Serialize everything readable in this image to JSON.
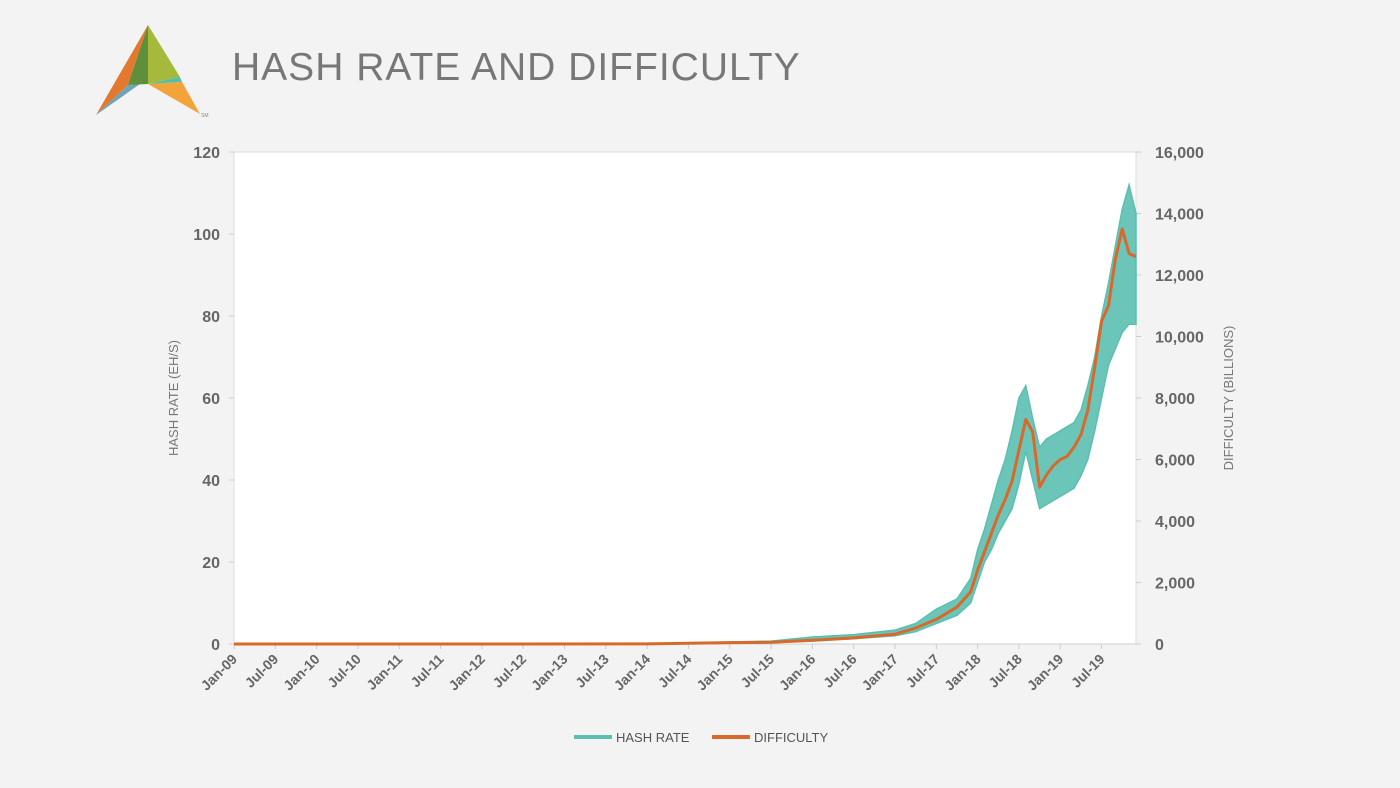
{
  "header": {
    "title": "HASH RATE AND DIFFICULTY",
    "logo_mark": "SM"
  },
  "colors": {
    "hash_rate": "#5bbfb0",
    "difficulty": "#d9692a",
    "plot_background": "#ffffff",
    "page_background": "#f3f3f3"
  },
  "chart_data": {
    "type": "line",
    "title": "HASH RATE AND DIFFICULTY",
    "legend_position": "bottom",
    "grid": false,
    "x_categories": [
      "Jan-09",
      "Jul-09",
      "Jan-10",
      "Jul-10",
      "Jan-11",
      "Jul-11",
      "Jan-12",
      "Jul-12",
      "Jan-13",
      "Jul-13",
      "Jan-14",
      "Jul-14",
      "Jan-15",
      "Jul-15",
      "Jan-16",
      "Jul-16",
      "Jan-17",
      "Jul-17",
      "Jan-18",
      "Jul-18",
      "Jan-19",
      "Jul-19"
    ],
    "x_range": [
      "Jan-09",
      "Dec-19"
    ],
    "y_left": {
      "label": "HASH RATE (EH/S)",
      "range": [
        0,
        120
      ],
      "ticks": [
        "0",
        "20",
        "40",
        "60",
        "80",
        "100",
        "120"
      ]
    },
    "y_right": {
      "label": "DIFFICULTY (BILLIONS)",
      "range": [
        0,
        16000
      ],
      "ticks": [
        "0",
        "2,000",
        "4,000",
        "6,000",
        "8,000",
        "10,000",
        "12,000",
        "14,000",
        "16,000"
      ]
    },
    "series": [
      {
        "name": "HASH RATE",
        "axis": "left",
        "color": "#5bbfb0",
        "x": [
          "2009-01",
          "2012-01",
          "2014-01",
          "2014-07",
          "2015-01",
          "2015-07",
          "2016-01",
          "2016-07",
          "2017-01",
          "2017-04",
          "2017-07",
          "2017-10",
          "2017-12",
          "2018-01",
          "2018-02",
          "2018-03",
          "2018-04",
          "2018-05",
          "2018-06",
          "2018-07",
          "2018-08",
          "2018-09",
          "2018-10",
          "2018-11",
          "2018-12",
          "2019-01",
          "2019-02",
          "2019-03",
          "2019-04",
          "2019-05",
          "2019-06",
          "2019-07",
          "2019-08",
          "2019-09",
          "2019-10",
          "2019-11",
          "2019-12"
        ],
        "low": [
          0,
          0,
          0,
          0.1,
          0.2,
          0.3,
          0.7,
          1.3,
          2.0,
          3.0,
          5.0,
          7.0,
          10.0,
          15.0,
          20.0,
          23.0,
          27.0,
          30.0,
          33.0,
          39.0,
          47.0,
          40.0,
          33.0,
          34.0,
          35.0,
          36.0,
          37.0,
          38.0,
          41.0,
          45.0,
          52.0,
          60.0,
          68.0,
          72.0,
          76.0,
          78.0,
          78.0
        ],
        "high": [
          0,
          0,
          0,
          0.3,
          0.5,
          0.7,
          1.7,
          2.3,
          3.4,
          5.0,
          8.5,
          11.0,
          16.0,
          23.0,
          28.0,
          34.0,
          40.0,
          45.0,
          52.0,
          60.0,
          63.0,
          55.0,
          48.0,
          50.0,
          51.0,
          52.0,
          53.0,
          54.0,
          57.0,
          63.0,
          70.0,
          80.0,
          88.0,
          97.0,
          106.0,
          112.0,
          105.0
        ]
      },
      {
        "name": "DIFFICULTY",
        "axis": "right",
        "color": "#d9692a",
        "x": [
          "2009-01",
          "2012-01",
          "2014-01",
          "2014-07",
          "2015-01",
          "2015-07",
          "2016-01",
          "2016-07",
          "2017-01",
          "2017-04",
          "2017-07",
          "2017-10",
          "2017-12",
          "2018-01",
          "2018-02",
          "2018-03",
          "2018-04",
          "2018-05",
          "2018-06",
          "2018-07",
          "2018-08",
          "2018-09",
          "2018-10",
          "2018-11",
          "2018-12",
          "2019-01",
          "2019-02",
          "2019-03",
          "2019-04",
          "2019-05",
          "2019-06",
          "2019-07",
          "2019-08",
          "2019-09",
          "2019-10",
          "2019-11",
          "2019-12"
        ],
        "values": [
          0,
          0,
          2,
          25,
          45,
          55,
          120,
          200,
          320,
          520,
          800,
          1200,
          1700,
          2400,
          3000,
          3600,
          4200,
          4700,
          5300,
          6300,
          7300,
          6900,
          5100,
          5500,
          5800,
          6000,
          6100,
          6400,
          6800,
          7600,
          9000,
          10500,
          11000,
          12500,
          13500,
          12700,
          12600
        ]
      }
    ]
  }
}
